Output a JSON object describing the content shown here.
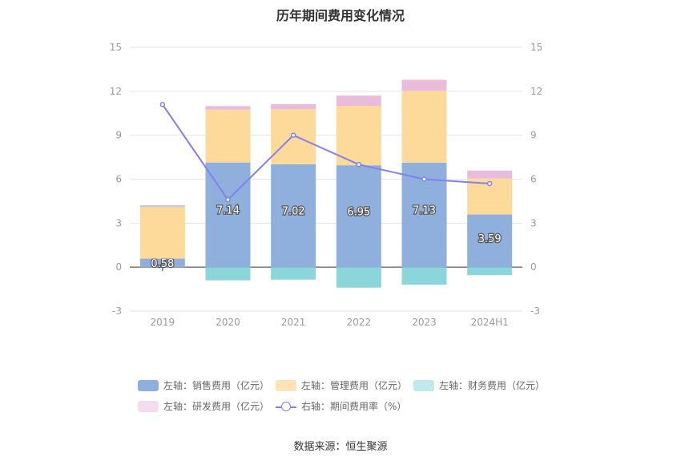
{
  "chart_data": {
    "type": "bar",
    "title": "历年期间费用变化情况",
    "categories": [
      "2019",
      "2020",
      "2021",
      "2022",
      "2023",
      "2024H1"
    ],
    "y_left": {
      "ticks": [
        "15",
        "12",
        "9",
        "6",
        "3",
        "0",
        "-3"
      ],
      "ylim": [
        -3,
        15
      ]
    },
    "y_right": {
      "ticks": [
        "15",
        "12",
        "9",
        "6",
        "3",
        "0",
        "-3"
      ],
      "ylim": [
        -3,
        15
      ]
    },
    "series": [
      {
        "name": "左轴：销售费用（亿元）",
        "type": "bar",
        "color": "#8fb0dc",
        "values": [
          0.58,
          7.14,
          7.02,
          6.95,
          7.13,
          3.59
        ],
        "labels": [
          "0.58",
          "7.14",
          "7.02",
          "6.95",
          "7.13",
          "3.59"
        ]
      },
      {
        "name": "左轴：管理费用（亿元）",
        "type": "bar",
        "color": "#fdd99a",
        "values": [
          3.52,
          3.6,
          3.75,
          4.05,
          4.9,
          2.45
        ]
      },
      {
        "name": "左轴：财务费用（亿元）",
        "type": "bar",
        "color": "#8ad6da",
        "values": [
          0.05,
          -0.9,
          -0.85,
          -1.4,
          -1.2,
          -0.55
        ]
      },
      {
        "name": "左轴：研发费用（亿元）",
        "type": "bar",
        "color": "#e9bcdc",
        "values": [
          0.08,
          0.25,
          0.35,
          0.7,
          0.75,
          0.55
        ]
      },
      {
        "name": "右轴：期间费用率（%）",
        "type": "line",
        "color": "#8080f0",
        "values": [
          11.1,
          4.6,
          9.0,
          7.0,
          6.0,
          5.7
        ]
      }
    ],
    "grid": true,
    "legend_position": "bottom"
  },
  "legend": [
    {
      "label": "左轴：销售费用（亿元）",
      "color": "#8fb0dc",
      "kind": "bar"
    },
    {
      "label": "左轴：管理费用（亿元）",
      "color": "#fde3b5",
      "kind": "bar"
    },
    {
      "label": "左轴：财务费用（亿元）",
      "color": "#bfe9eb",
      "kind": "bar"
    },
    {
      "label": "左轴：研发费用（亿元）",
      "color": "#f5dcee",
      "kind": "bar"
    },
    {
      "label": "右轴：期间费用率（%）",
      "color": "#8080f0",
      "kind": "line"
    }
  ],
  "source": "数据来源：恒生聚源"
}
